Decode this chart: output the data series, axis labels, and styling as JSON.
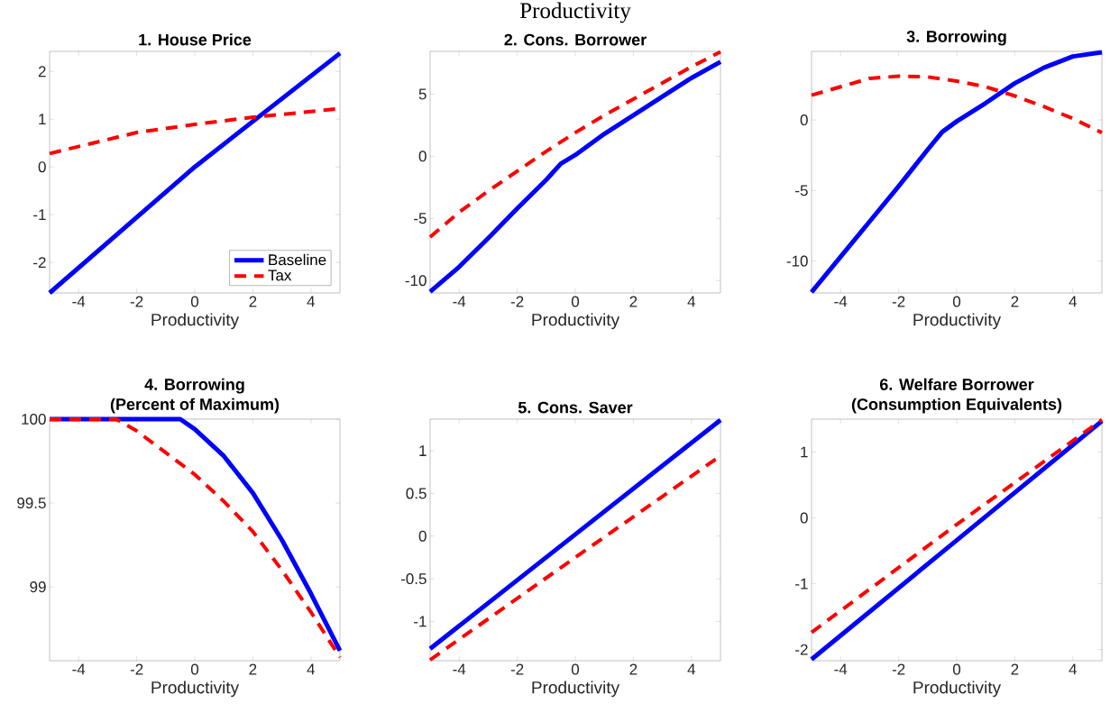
{
  "chart_data": [
    {
      "type": "line",
      "title": "1. House Price",
      "xlabel": "Productivity",
      "xlim": [
        -5,
        5
      ],
      "ylim": [
        -2.64,
        2.42
      ],
      "xticks": [
        -4,
        -2,
        0,
        2,
        4
      ],
      "yticks": [
        -2,
        -1,
        0,
        1,
        2
      ],
      "legend": "bottom right",
      "series": [
        {
          "name": "Baseline",
          "color": "#0000ff",
          "line_style": "solid",
          "x": [
            -5,
            0,
            5
          ],
          "values": [
            -2.64,
            0,
            2.38
          ]
        },
        {
          "name": "Tax",
          "color": "#ff0000",
          "line_style": "dashed",
          "x": [
            -5,
            -2,
            0,
            2,
            5
          ],
          "values": [
            0.28,
            0.72,
            0.89,
            1.04,
            1.22
          ]
        }
      ]
    },
    {
      "type": "line",
      "title": "2. Cons. Borrower",
      "xlabel": "Productivity",
      "annotations": [
        "Productivity"
      ],
      "xlim": [
        -5,
        5
      ],
      "ylim": [
        -11,
        8.44
      ],
      "xticks": [
        -4,
        -2,
        0,
        2,
        4
      ],
      "yticks": [
        -10,
        -5,
        0,
        5
      ],
      "series": [
        {
          "color": "#0000ff",
          "line_style": "solid",
          "x": [
            -5,
            -4,
            -3,
            -2,
            -1,
            -0.5,
            0,
            1,
            2,
            3,
            4,
            5
          ],
          "values": [
            -10.9,
            -8.9,
            -6.6,
            -4.2,
            -1.9,
            -0.6,
            0.1,
            1.8,
            3.3,
            4.8,
            6.3,
            7.6
          ]
        },
        {
          "color": "#ff0000",
          "line_style": "dashed",
          "x": [
            -5,
            -4,
            -3,
            -2,
            -1,
            0,
            1,
            2,
            3,
            4,
            5
          ],
          "values": [
            -6.5,
            -4.5,
            -2.8,
            -1.2,
            0.4,
            1.9,
            3.3,
            4.6,
            5.9,
            7.2,
            8.4
          ]
        }
      ]
    },
    {
      "type": "line",
      "title": "3. Borrowing",
      "xlabel": "Productivity",
      "xlim": [
        -5,
        5
      ],
      "ylim": [
        -12.26,
        4.86
      ],
      "xticks": [
        -4,
        -2,
        0,
        2,
        4
      ],
      "yticks": [
        -10,
        -5,
        0
      ],
      "series": [
        {
          "color": "#0000ff",
          "line_style": "solid",
          "x": [
            -5,
            -4,
            -3,
            -2,
            -1,
            -0.5,
            0,
            1,
            2,
            3,
            4,
            5
          ],
          "values": [
            -12.2,
            -9.7,
            -7.2,
            -4.7,
            -2.1,
            -0.85,
            -0.1,
            1.2,
            2.6,
            3.7,
            4.5,
            4.8
          ]
        },
        {
          "color": "#ff0000",
          "line_style": "dashed",
          "x": [
            -5,
            -4,
            -3,
            -2,
            -1,
            0,
            1,
            2,
            3,
            4,
            5
          ],
          "values": [
            1.75,
            2.35,
            2.95,
            3.1,
            3.05,
            2.75,
            2.35,
            1.7,
            0.95,
            0.1,
            -0.9
          ]
        }
      ]
    },
    {
      "type": "line",
      "title": "4. Borrowing",
      "subtitle": "(Percent of Maximum)",
      "xlabel": "Productivity",
      "xlim": [
        -5,
        5
      ],
      "ylim": [
        98.56,
        100
      ],
      "xticks": [
        -4,
        -2,
        0,
        2,
        4
      ],
      "yticks": [
        99,
        99.5,
        100
      ],
      "series": [
        {
          "color": "#0000ff",
          "line_style": "solid",
          "x": [
            -5,
            -0.5,
            0,
            1,
            2,
            3,
            4,
            5
          ],
          "values": [
            100,
            100,
            99.94,
            99.78,
            99.56,
            99.28,
            98.96,
            98.62
          ]
        },
        {
          "color": "#ff0000",
          "line_style": "dashed",
          "x": [
            -5,
            -2.7,
            -2,
            -1,
            0,
            1,
            2,
            3,
            4,
            5
          ],
          "values": [
            100,
            100,
            99.93,
            99.8,
            99.67,
            99.51,
            99.33,
            99.1,
            98.85,
            98.58
          ]
        }
      ]
    },
    {
      "type": "line",
      "title": "5. Cons. Saver",
      "xlabel": "Productivity",
      "xlim": [
        -5,
        5
      ],
      "ylim": [
        -1.46,
        1.37
      ],
      "xticks": [
        -4,
        -2,
        0,
        2,
        4
      ],
      "yticks": [
        -1,
        -0.5,
        0,
        0.5,
        1
      ],
      "series": [
        {
          "color": "#0000ff",
          "line_style": "solid",
          "x": [
            -5,
            0,
            5
          ],
          "values": [
            -1.32,
            0.02,
            1.36
          ]
        },
        {
          "color": "#ff0000",
          "line_style": "dashed",
          "x": [
            -5,
            0,
            5
          ],
          "values": [
            -1.45,
            -0.25,
            0.94
          ]
        }
      ]
    },
    {
      "type": "line",
      "title": "6. Welfare Borrower",
      "subtitle": "(Consumption Equivalents)",
      "xlabel": "Productivity",
      "xlim": [
        -5,
        5
      ],
      "ylim": [
        -2.17,
        1.5
      ],
      "xticks": [
        -4,
        -2,
        0,
        2,
        4
      ],
      "yticks": [
        -2,
        -1,
        0,
        1
      ],
      "series": [
        {
          "color": "#0000ff",
          "line_style": "solid",
          "x": [
            -5,
            0,
            5
          ],
          "values": [
            -2.15,
            -0.34,
            1.47
          ]
        },
        {
          "color": "#ff0000",
          "line_style": "dashed",
          "x": [
            -5,
            0,
            5
          ],
          "values": [
            -1.74,
            -0.1,
            1.49
          ]
        }
      ]
    }
  ]
}
